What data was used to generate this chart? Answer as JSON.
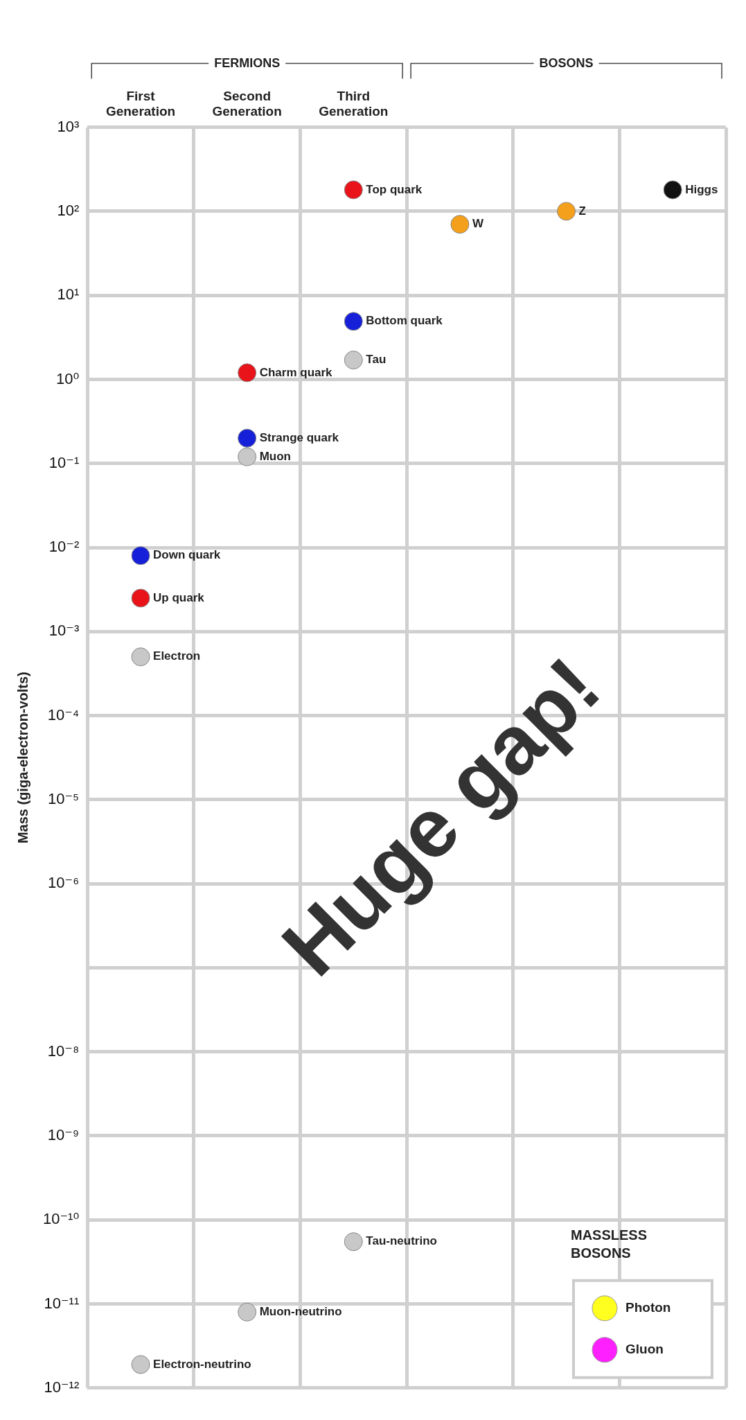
{
  "chart_data": {
    "type": "scatter",
    "ylabel": "Mass (giga-electron-volts)",
    "log": true,
    "ylim": [
      1e-12,
      1000
    ],
    "yticks": [
      {
        "value": 1e-12,
        "label": "10⁻¹²"
      },
      {
        "value": 1e-11,
        "label": "10⁻¹¹"
      },
      {
        "value": 1e-10,
        "label": "10⁻¹⁰"
      },
      {
        "value": 1e-09,
        "label": "10⁻⁹"
      },
      {
        "value": 1e-08,
        "label": "10⁻⁸"
      },
      {
        "value": 1e-07,
        "label": null
      },
      {
        "value": 1e-06,
        "label": "10⁻⁶"
      },
      {
        "value": 1e-05,
        "label": "10⁻⁵"
      },
      {
        "value": 0.0001,
        "label": "10⁻⁴"
      },
      {
        "value": 0.001,
        "label": "10⁻³"
      },
      {
        "value": 0.01,
        "label": "10⁻²"
      },
      {
        "value": 0.1,
        "label": "10⁻¹"
      },
      {
        "value": 1,
        "label": "10⁰"
      },
      {
        "value": 10,
        "label": "10¹"
      },
      {
        "value": 100,
        "label": "10²"
      },
      {
        "value": 1000,
        "label": "10³"
      }
    ],
    "categories": [
      "First Generation",
      "Second Generation",
      "Third Generation",
      null,
      null,
      null
    ],
    "grid": true,
    "marker": "circle",
    "legend": "bottom right",
    "legend_title": "MASSLESS BOSONS",
    "annotations": [
      "FERMIONS",
      "BOSONS",
      "Huge gap!"
    ],
    "series": [
      {
        "name": "Up quark",
        "color": "#e8141a",
        "values": [
          0.0025,
          null,
          null,
          null,
          null,
          null
        ]
      },
      {
        "name": "Down quark",
        "color": "#1520d8",
        "values": [
          0.008,
          null,
          null,
          null,
          null,
          null
        ]
      },
      {
        "name": "Electron",
        "color": "#c8c8c8",
        "values": [
          0.0005,
          null,
          null,
          null,
          null,
          null
        ]
      },
      {
        "name": "Electron-neutrino",
        "color": "#c8c8c8",
        "values": [
          1.9e-12,
          null,
          null,
          null,
          null,
          null
        ]
      },
      {
        "name": "Charm quark",
        "color": "#e8141a",
        "values": [
          null,
          1.2,
          null,
          null,
          null,
          null
        ]
      },
      {
        "name": "Strange quark",
        "color": "#1520d8",
        "values": [
          null,
          0.2,
          null,
          null,
          null,
          null
        ]
      },
      {
        "name": "Muon",
        "color": "#c8c8c8",
        "values": [
          null,
          0.12,
          null,
          null,
          null,
          null
        ]
      },
      {
        "name": "Muon-neutrino",
        "color": "#c8c8c8",
        "values": [
          null,
          8e-12,
          null,
          null,
          null,
          null
        ]
      },
      {
        "name": "Top quark",
        "color": "#e8141a",
        "values": [
          null,
          null,
          180,
          null,
          null,
          null
        ]
      },
      {
        "name": "Bottom quark",
        "color": "#1520d8",
        "values": [
          null,
          null,
          4.9,
          null,
          null,
          null
        ]
      },
      {
        "name": "Tau",
        "color": "#c8c8c8",
        "values": [
          null,
          null,
          1.7,
          null,
          null,
          null
        ]
      },
      {
        "name": "Tau-neutrino",
        "color": "#c8c8c8",
        "values": [
          null,
          null,
          5.5e-11,
          null,
          null,
          null
        ]
      },
      {
        "name": "W",
        "color": "#f5a01c",
        "values": [
          null,
          null,
          null,
          70,
          null,
          null
        ]
      },
      {
        "name": "Z",
        "color": "#f5a01c",
        "values": [
          null,
          null,
          null,
          null,
          100,
          null
        ]
      },
      {
        "name": "Higgs",
        "color": "#111111",
        "values": [
          null,
          null,
          null,
          null,
          null,
          180
        ]
      },
      {
        "name": "Photon",
        "color": "#ffff20",
        "values": [
          null,
          null,
          null,
          null,
          null,
          null
        ]
      },
      {
        "name": "Gluon",
        "color": "#ff20ff",
        "values": [
          null,
          null,
          null,
          null,
          null,
          null
        ]
      }
    ]
  }
}
